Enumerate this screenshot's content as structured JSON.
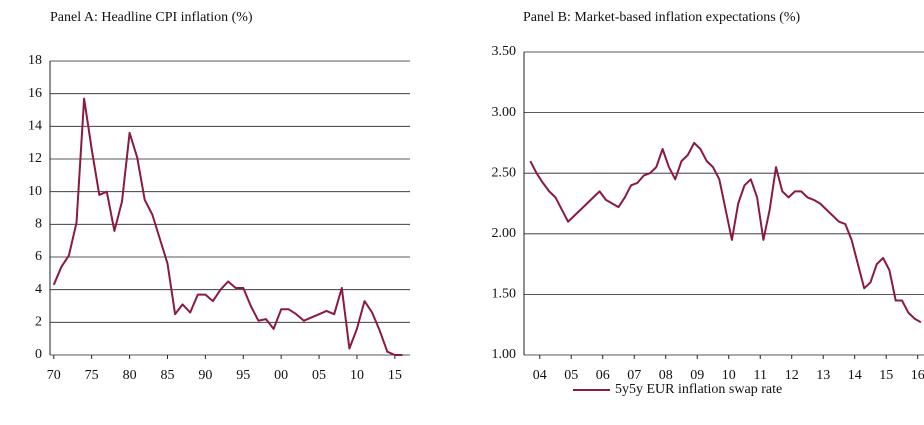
{
  "chart_data": [
    {
      "type": "line",
      "title": "Panel A: Headline CPI inflation (%)",
      "color": "#8b1a3c",
      "grid": true,
      "x": [
        1970,
        1971,
        1972,
        1973,
        1974,
        1975,
        1976,
        1977,
        1978,
        1979,
        1980,
        1981,
        1982,
        1983,
        1984,
        1985,
        1986,
        1987,
        1988,
        1989,
        1990,
        1991,
        1992,
        1993,
        1994,
        1995,
        1996,
        1997,
        1998,
        1999,
        2000,
        2001,
        2002,
        2003,
        2004,
        2005,
        2006,
        2007,
        2008,
        2009,
        2010,
        2011,
        2012,
        2013,
        2014,
        2015,
        2016
      ],
      "values": [
        4.3,
        5.4,
        6.1,
        8.1,
        15.7,
        12.6,
        9.8,
        10.0,
        7.6,
        9.4,
        13.6,
        12.1,
        9.5,
        8.6,
        7.1,
        5.6,
        2.5,
        3.1,
        2.6,
        3.7,
        3.7,
        3.3,
        4.0,
        4.5,
        4.1,
        4.1,
        3.0,
        2.1,
        2.2,
        1.6,
        2.8,
        2.8,
        2.5,
        2.1,
        2.3,
        2.5,
        2.7,
        2.5,
        4.1,
        0.4,
        1.6,
        3.3,
        2.6,
        1.5,
        0.2,
        0.0,
        0.0
      ],
      "xlim": [
        1969.5,
        2017
      ],
      "xticks": [
        {
          "value": 1970,
          "label": "70"
        },
        {
          "value": 1975,
          "label": "75"
        },
        {
          "value": 1980,
          "label": "80"
        },
        {
          "value": 1985,
          "label": "85"
        },
        {
          "value": 1990,
          "label": "90"
        },
        {
          "value": 1995,
          "label": "95"
        },
        {
          "value": 2000,
          "label": "00"
        },
        {
          "value": 2005,
          "label": "05"
        },
        {
          "value": 2010,
          "label": "10"
        },
        {
          "value": 2015,
          "label": "15"
        }
      ],
      "ylim": [
        0,
        18
      ],
      "yticks": [
        0,
        2,
        4,
        6,
        8,
        10,
        12,
        14,
        16,
        18
      ]
    },
    {
      "type": "line",
      "title": "Panel B: Market-based inflation expectations (%)",
      "grid": true,
      "legend": "bottom",
      "x": [
        2004.2,
        2004.4,
        2004.6,
        2004.8,
        2005.0,
        2005.2,
        2005.4,
        2005.6,
        2005.8,
        2006.0,
        2006.2,
        2006.4,
        2006.6,
        2006.8,
        2007.0,
        2007.2,
        2007.4,
        2007.6,
        2007.8,
        2008.0,
        2008.2,
        2008.4,
        2008.6,
        2008.8,
        2009.0,
        2009.2,
        2009.4,
        2009.6,
        2009.8,
        2010.0,
        2010.2,
        2010.4,
        2010.6,
        2010.8,
        2011.0,
        2011.2,
        2011.4,
        2011.6,
        2011.8,
        2012.0,
        2012.2,
        2012.4,
        2012.6,
        2012.8,
        2013.0,
        2013.2,
        2013.4,
        2013.6,
        2013.8,
        2014.0,
        2014.2,
        2014.4,
        2014.6,
        2014.8,
        2015.0,
        2015.2,
        2015.4,
        2015.6,
        2015.8,
        2016.0,
        2016.2,
        2016.4,
        2016.6
      ],
      "series": [
        {
          "name": "5y5y EUR inflation swap rate",
          "color": "#8b1a3c",
          "values": [
            2.6,
            2.5,
            2.42,
            2.35,
            2.3,
            2.2,
            2.1,
            2.15,
            2.2,
            2.25,
            2.3,
            2.35,
            2.28,
            2.25,
            2.22,
            2.3,
            2.4,
            2.42,
            2.48,
            2.5,
            2.55,
            2.7,
            2.55,
            2.45,
            2.6,
            2.65,
            2.75,
            2.7,
            2.6,
            2.55,
            2.45,
            2.2,
            1.95,
            2.25,
            2.4,
            2.45,
            2.3,
            1.95,
            2.2,
            2.55,
            2.35,
            2.3,
            2.35,
            2.35,
            2.3,
            2.28,
            2.25,
            2.2,
            2.15,
            2.1,
            2.08,
            1.95,
            1.75,
            1.55,
            1.6,
            1.75,
            1.8,
            1.7,
            1.45,
            1.45,
            1.35,
            1.3,
            1.27
          ]
        }
      ],
      "xlim": [
        2004,
        2016.7
      ],
      "xticks": [
        {
          "value": 2004.5,
          "label": "04"
        },
        {
          "value": 2005.5,
          "label": "05"
        },
        {
          "value": 2006.5,
          "label": "06"
        },
        {
          "value": 2007.5,
          "label": "07"
        },
        {
          "value": 2008.5,
          "label": "08"
        },
        {
          "value": 2009.5,
          "label": "09"
        },
        {
          "value": 2010.5,
          "label": "10"
        },
        {
          "value": 2011.5,
          "label": "11"
        },
        {
          "value": 2012.5,
          "label": "12"
        },
        {
          "value": 2013.5,
          "label": "13"
        },
        {
          "value": 2014.5,
          "label": "14"
        },
        {
          "value": 2015.5,
          "label": "15"
        },
        {
          "value": 2016.5,
          "label": "16"
        }
      ],
      "ylim": [
        1,
        3.5
      ],
      "yticks": [
        {
          "value": 1,
          "label": "1.00"
        },
        {
          "value": 1.5,
          "label": "1.50"
        },
        {
          "value": 2,
          "label": "2.00"
        },
        {
          "value": 2.5,
          "label": "2.50"
        },
        {
          "value": 3,
          "label": "3.00"
        },
        {
          "value": 3.5,
          "label": "3.50"
        }
      ]
    }
  ]
}
